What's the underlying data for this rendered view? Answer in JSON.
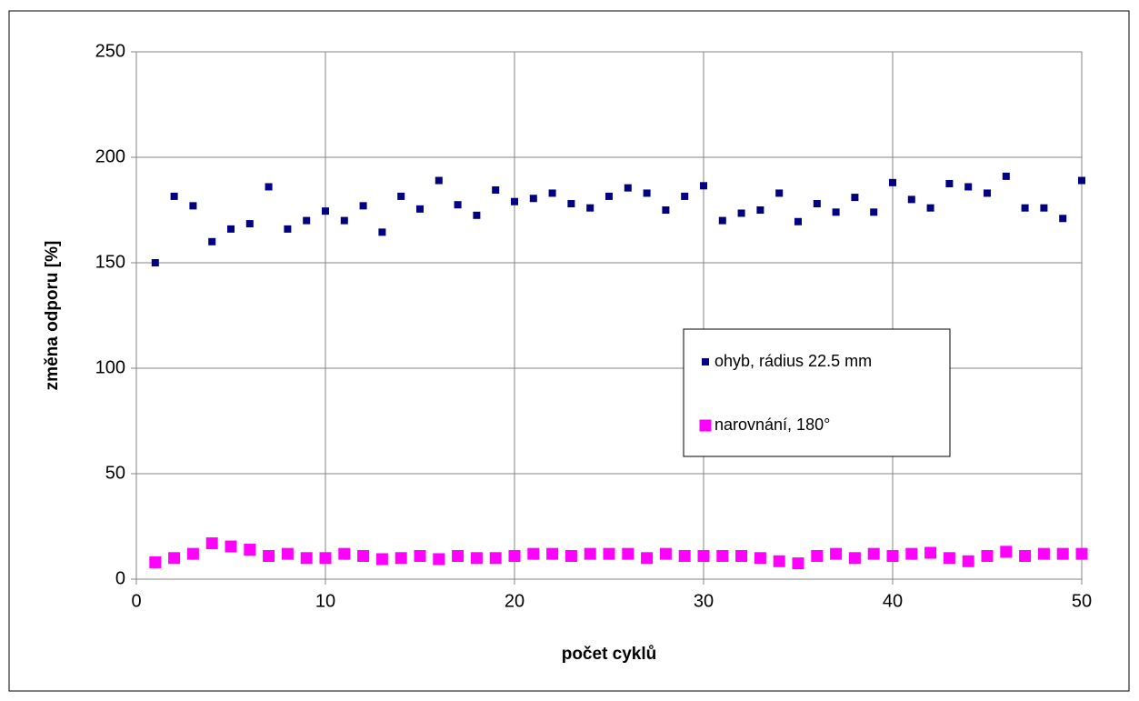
{
  "chart_data": {
    "type": "scatter",
    "xlabel": "počet cyklů",
    "ylabel": "změna odporu [%]",
    "x": [
      1,
      2,
      3,
      4,
      5,
      6,
      7,
      8,
      9,
      10,
      11,
      12,
      13,
      14,
      15,
      16,
      17,
      18,
      19,
      20,
      21,
      22,
      23,
      24,
      25,
      26,
      27,
      28,
      29,
      30,
      31,
      32,
      33,
      34,
      35,
      36,
      37,
      38,
      39,
      40,
      41,
      42,
      43,
      44,
      45,
      46,
      47,
      48,
      49,
      50
    ],
    "series": [
      {
        "name": "ohyb, rádius 22.5 mm",
        "color": "#000080",
        "marker_size": 8,
        "values": [
          150,
          181.5,
          177,
          160,
          166,
          168.5,
          186,
          166,
          170,
          174.5,
          170,
          177,
          164.5,
          181.5,
          175.5,
          189,
          177.5,
          172.5,
          184.5,
          179,
          180.5,
          183,
          178,
          176,
          181.5,
          185.5,
          183,
          175,
          181.5,
          186.5,
          170,
          173.5,
          175,
          183,
          169.5,
          178,
          174,
          181,
          174,
          188,
          180,
          176,
          187.5,
          186,
          183,
          191,
          176,
          176,
          171,
          189
        ]
      },
      {
        "name": "narovnání, 180°",
        "color": "#ff00ff",
        "marker_size": 13,
        "values": [
          8,
          10,
          12,
          17,
          15.5,
          14,
          11,
          12,
          10,
          10,
          12,
          11,
          9.5,
          10,
          11,
          9.5,
          11,
          10,
          10,
          11,
          12,
          12,
          11,
          12,
          12,
          12,
          10,
          12,
          11,
          11,
          11,
          11,
          10,
          8.5,
          7.5,
          11,
          12,
          10,
          12,
          11,
          12,
          12.5,
          10,
          8.5,
          11,
          13,
          11,
          12,
          12,
          12
        ]
      }
    ],
    "xlim": [
      0,
      50
    ],
    "xticks": [
      0,
      10,
      20,
      30,
      40,
      50
    ],
    "ylim": [
      0,
      250
    ],
    "yticks": [
      0,
      50,
      100,
      150,
      200,
      250
    ],
    "grid": true
  }
}
